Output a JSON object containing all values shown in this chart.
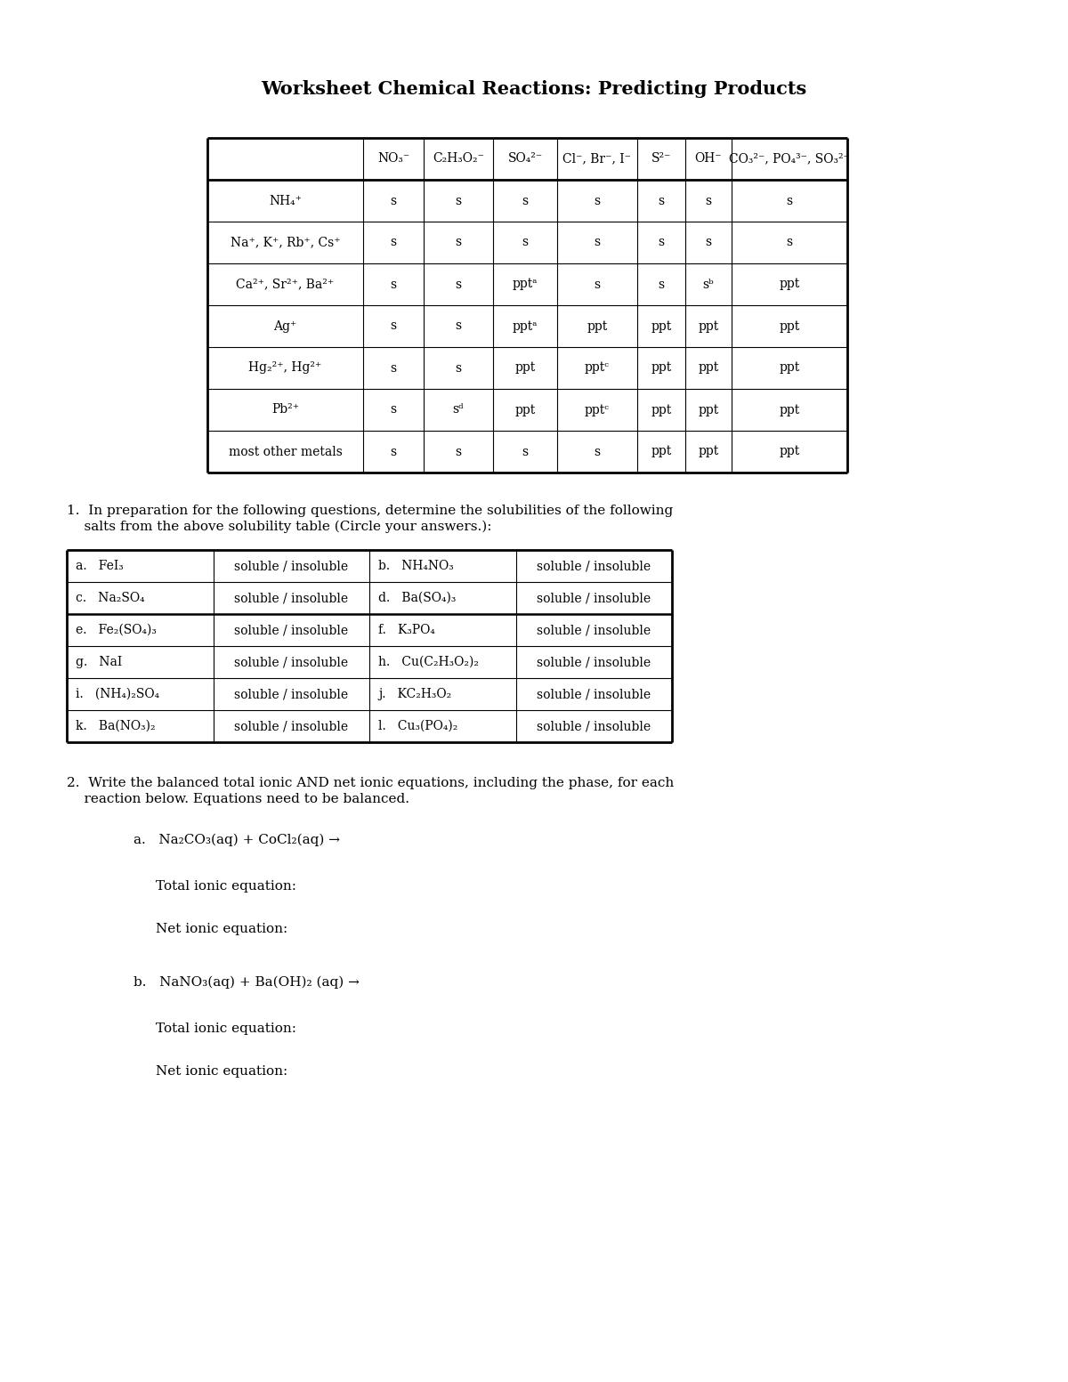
{
  "title": "Worksheet Chemical Reactions: Predicting Products",
  "bg_color": "#ffffff",
  "sol_table": {
    "col_headers": [
      "NO₃⁻",
      "C₂H₃O₂⁻",
      "SO₄²⁻",
      "Cl⁻, Br⁻, I⁻",
      "S²⁻",
      "OH⁻",
      "CO₃²⁻, PO₄³⁻, SO₃²⁻"
    ],
    "row_headers": [
      "NH₄⁺",
      "Na⁺, K⁺, Rb⁺, Cs⁺",
      "Ca²⁺, Sr²⁺, Ba²⁺",
      "Ag⁺",
      "Hg₂²⁺, Hg²⁺",
      "Pb²⁺",
      "most other metals"
    ],
    "data": [
      [
        "s",
        "s",
        "s",
        "s",
        "s",
        "s",
        "s"
      ],
      [
        "s",
        "s",
        "s",
        "s",
        "s",
        "s",
        "s"
      ],
      [
        "s",
        "s",
        "pptᵃ",
        "s",
        "s",
        "sᵇ",
        "ppt"
      ],
      [
        "s",
        "s",
        "pptᵃ",
        "ppt",
        "ppt",
        "ppt",
        "ppt"
      ],
      [
        "s",
        "s",
        "ppt",
        "pptᶜ",
        "ppt",
        "ppt",
        "ppt"
      ],
      [
        "s",
        "sᵈ",
        "ppt",
        "pptᶜ",
        "ppt",
        "ppt",
        "ppt"
      ],
      [
        "s",
        "s",
        "s",
        "s",
        "ppt",
        "ppt",
        "ppt"
      ]
    ]
  },
  "q1_line1": "1.  In preparation for the following questions, determine the solubilities of the following",
  "q1_line2": "    salts from the above solubility table (Circle your answers.):",
  "sol_items": [
    [
      "a.   FeI₃",
      "soluble / insoluble",
      "b.   NH₄NO₃",
      "soluble / insoluble"
    ],
    [
      "c.   Na₂SO₄",
      "soluble / insoluble",
      "d.   Ba(SO₄)₃",
      "soluble / insoluble"
    ],
    [
      "e.   Fe₂(SO₄)₃",
      "soluble / insoluble",
      "f.   K₃PO₄",
      "soluble / insoluble"
    ],
    [
      "g.   NaI",
      "soluble / insoluble",
      "h.   Cu(C₂H₃O₂)₂",
      "soluble / insoluble"
    ],
    [
      "i.   (NH₄)₂SO₄",
      "soluble / insoluble",
      "j.   KC₂H₃O₂",
      "soluble / insoluble"
    ],
    [
      "k.   Ba(NO₃)₂",
      "soluble / insoluble",
      "l.   Cu₃(PO₄)₂",
      "soluble / insoluble"
    ]
  ],
  "q2_line1": "2.  Write the balanced total ionic AND net ionic equations, including the phase, for each",
  "q2_line2": "    reaction below. Equations need to be balanced.",
  "ra": "a.   Na₂CO₃(aq) + CoCl₂(aq) →",
  "ra_total": "Total ionic equation:",
  "ra_net": "Net ionic equation:",
  "rb": "b.   NaNO₃(aq) + Ba(OH)₂ (aq) →",
  "rb_total": "Total ionic equation:",
  "rb_net": "Net ionic equation:"
}
